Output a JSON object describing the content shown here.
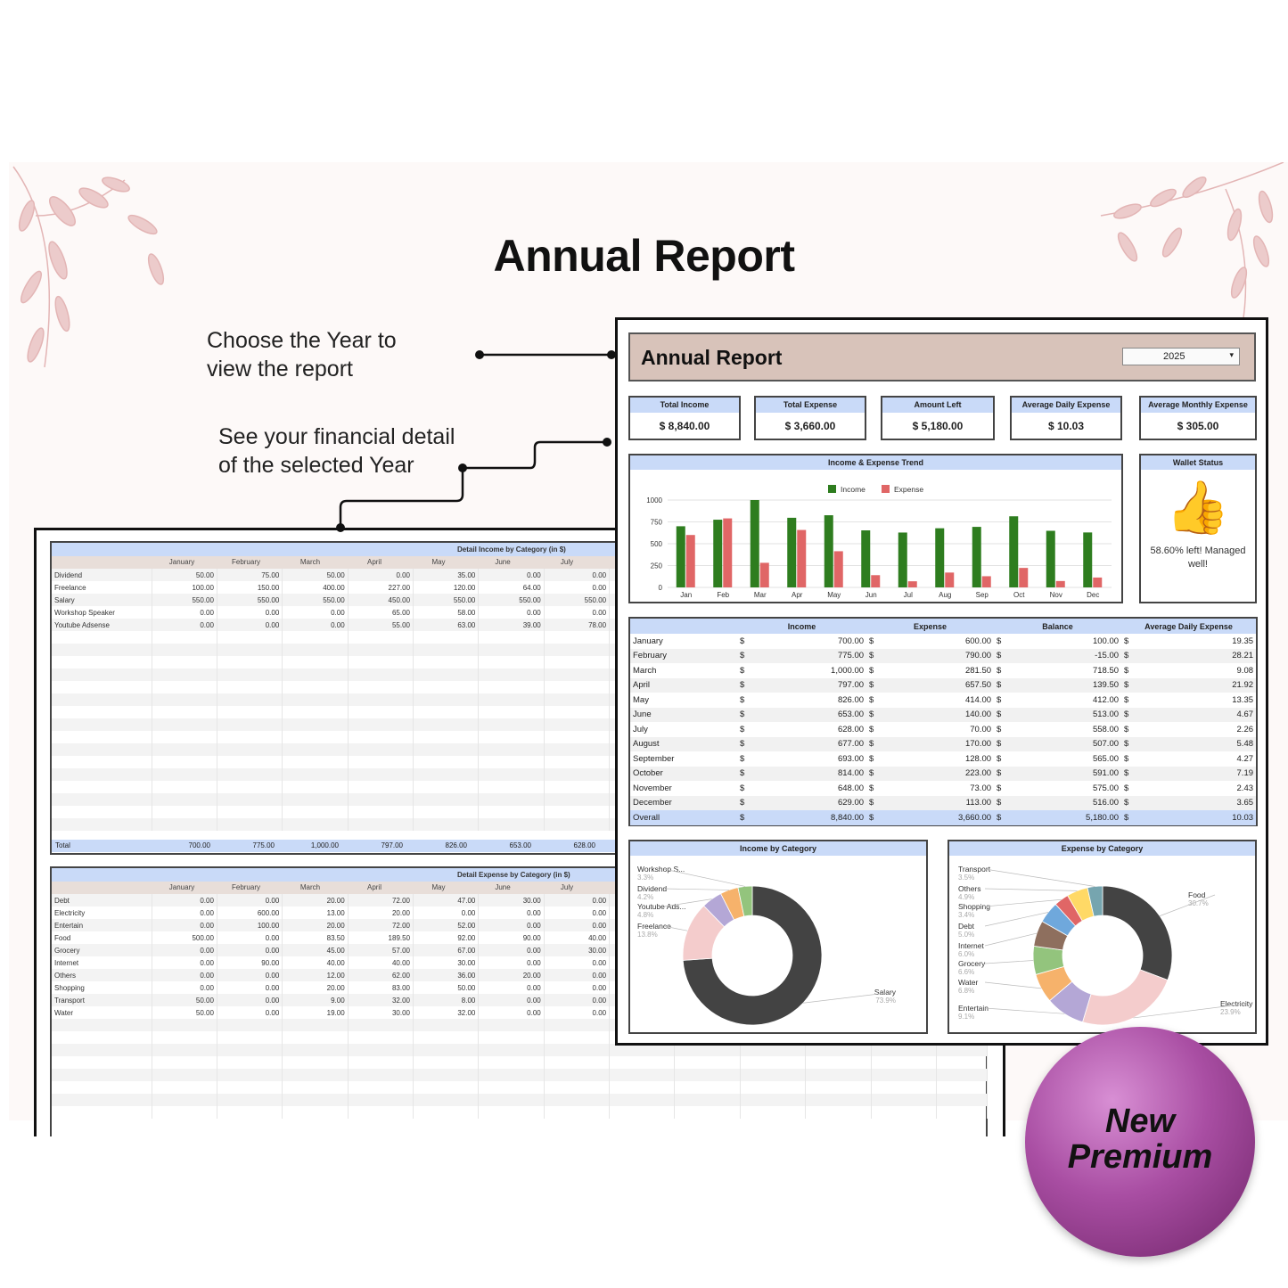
{
  "page": {
    "title": "Annual Report"
  },
  "callouts": {
    "year": [
      "Choose the Year to",
      "view the report"
    ],
    "detail": [
      "See your financial detail",
      "of the selected Year"
    ]
  },
  "badge": {
    "line1": "New",
    "line2": "Premium"
  },
  "dashboard": {
    "title": "Annual Report",
    "year": "2025",
    "kpis": [
      {
        "label": "Total Income",
        "value": "$ 8,840.00"
      },
      {
        "label": "Total Expense",
        "value": "$ 3,660.00"
      },
      {
        "label": "Amount Left",
        "value": "$ 5,180.00"
      },
      {
        "label": "Average Daily Expense",
        "value": "$ 10.03"
      },
      {
        "label": "Average Monthly Expense",
        "value": "$ 305.00"
      }
    ],
    "trend_title": "Income & Expense Trend",
    "wallet": {
      "title": "Wallet Status",
      "text_line1": "58.60% left! Managed",
      "text_line2": "well!"
    },
    "summary": {
      "headers": [
        "",
        "Income",
        "Expense",
        "Balance",
        "Average Daily Expense"
      ],
      "rows": [
        [
          "January",
          "700.00",
          "600.00",
          "100.00",
          "19.35"
        ],
        [
          "February",
          "775.00",
          "790.00",
          "-15.00",
          "28.21"
        ],
        [
          "March",
          "1,000.00",
          "281.50",
          "718.50",
          "9.08"
        ],
        [
          "April",
          "797.00",
          "657.50",
          "139.50",
          "21.92"
        ],
        [
          "May",
          "826.00",
          "414.00",
          "412.00",
          "13.35"
        ],
        [
          "June",
          "653.00",
          "140.00",
          "513.00",
          "4.67"
        ],
        [
          "July",
          "628.00",
          "70.00",
          "558.00",
          "2.26"
        ],
        [
          "August",
          "677.00",
          "170.00",
          "507.00",
          "5.48"
        ],
        [
          "September",
          "693.00",
          "128.00",
          "565.00",
          "4.27"
        ],
        [
          "October",
          "814.00",
          "223.00",
          "591.00",
          "7.19"
        ],
        [
          "November",
          "648.00",
          "73.00",
          "575.00",
          "2.43"
        ],
        [
          "December",
          "629.00",
          "113.00",
          "516.00",
          "3.65"
        ],
        [
          "Overall",
          "8,840.00",
          "3,660.00",
          "5,180.00",
          "10.03"
        ]
      ],
      "currency": "$"
    }
  },
  "sheet": {
    "income_title": "Detail Income by Category (in $)",
    "expense_title": "Detail Expense by Category (in $)",
    "months": [
      "",
      "January",
      "February",
      "March",
      "April",
      "May",
      "June",
      "July"
    ],
    "income_rows": [
      [
        "Dividend",
        "50.00",
        "75.00",
        "50.00",
        "0.00",
        "35.00",
        "0.00",
        "0.00"
      ],
      [
        "Freelance",
        "100.00",
        "150.00",
        "400.00",
        "227.00",
        "120.00",
        "64.00",
        "0.00"
      ],
      [
        "Salary",
        "550.00",
        "550.00",
        "550.00",
        "450.00",
        "550.00",
        "550.00",
        "550.00"
      ],
      [
        "Workshop Speaker",
        "0.00",
        "0.00",
        "0.00",
        "65.00",
        "58.00",
        "0.00",
        "0.00"
      ],
      [
        "Youtube Adsense",
        "0.00",
        "0.00",
        "0.00",
        "55.00",
        "63.00",
        "39.00",
        "78.00"
      ]
    ],
    "income_total": [
      "Total",
      "700.00",
      "775.00",
      "1,000.00",
      "797.00",
      "826.00",
      "653.00",
      "628.00"
    ],
    "expense_rows": [
      [
        "Debt",
        "0.00",
        "0.00",
        "20.00",
        "72.00",
        "47.00",
        "30.00",
        "0.00"
      ],
      [
        "Electricity",
        "0.00",
        "600.00",
        "13.00",
        "20.00",
        "0.00",
        "0.00",
        "0.00"
      ],
      [
        "Entertain",
        "0.00",
        "100.00",
        "20.00",
        "72.00",
        "52.00",
        "0.00",
        "0.00"
      ],
      [
        "Food",
        "500.00",
        "0.00",
        "83.50",
        "189.50",
        "92.00",
        "90.00",
        "40.00"
      ],
      [
        "Grocery",
        "0.00",
        "0.00",
        "45.00",
        "57.00",
        "67.00",
        "0.00",
        "30.00"
      ],
      [
        "Internet",
        "0.00",
        "90.00",
        "40.00",
        "40.00",
        "30.00",
        "0.00",
        "0.00"
      ],
      [
        "Others",
        "0.00",
        "0.00",
        "12.00",
        "62.00",
        "36.00",
        "20.00",
        "0.00"
      ],
      [
        "Shopping",
        "0.00",
        "0.00",
        "20.00",
        "83.00",
        "50.00",
        "0.00",
        "0.00"
      ],
      [
        "Transport",
        "50.00",
        "0.00",
        "9.00",
        "32.00",
        "8.00",
        "0.00",
        "0.00"
      ],
      [
        "Water",
        "50.00",
        "0.00",
        "19.00",
        "30.00",
        "32.00",
        "0.00",
        "0.00"
      ]
    ]
  },
  "chart_data": [
    {
      "type": "bar",
      "title": "Income & Expense Trend",
      "categories": [
        "Jan",
        "Feb",
        "Mar",
        "Apr",
        "May",
        "Jun",
        "Jul",
        "Aug",
        "Sep",
        "Oct",
        "Nov",
        "Dec"
      ],
      "series": [
        {
          "name": "Income",
          "color": "#2e7d1f",
          "values": [
            700,
            775,
            1000,
            797,
            826,
            653,
            628,
            677,
            693,
            814,
            648,
            629
          ]
        },
        {
          "name": "Expense",
          "color": "#e06666",
          "values": [
            600,
            790,
            281.5,
            657.5,
            414,
            140,
            70,
            170,
            128,
            223,
            73,
            113
          ]
        }
      ],
      "yticks": [
        "0",
        "250",
        "500",
        "750",
        "1000"
      ],
      "ylim": [
        0,
        1000
      ],
      "legend": "top"
    },
    {
      "type": "pie",
      "title": "Income by Category",
      "slices": [
        {
          "label": "Salary",
          "pct": "73.9%",
          "value": 73.9,
          "color": "#434343"
        },
        {
          "label": "Freelance",
          "pct": "13.8%",
          "value": 13.8,
          "color": "#f4cccc"
        },
        {
          "label": "Youtube Ads...",
          "pct": "4.8%",
          "value": 4.8,
          "color": "#b4a7d6"
        },
        {
          "label": "Dividend",
          "pct": "4.2%",
          "value": 4.2,
          "color": "#f6b26b"
        },
        {
          "label": "Workshop S...",
          "pct": "3.3%",
          "value": 3.3,
          "color": "#93c47d"
        }
      ]
    },
    {
      "type": "pie",
      "title": "Expense by Category",
      "slices": [
        {
          "label": "Food",
          "pct": "30.7%",
          "value": 30.7,
          "color": "#434343"
        },
        {
          "label": "Electricity",
          "pct": "23.9%",
          "value": 23.9,
          "color": "#f4cccc"
        },
        {
          "label": "Entertain",
          "pct": "9.1%",
          "value": 9.1,
          "color": "#b4a7d6"
        },
        {
          "label": "Water",
          "pct": "6.8%",
          "value": 6.8,
          "color": "#f6b26b"
        },
        {
          "label": "Grocery",
          "pct": "6.6%",
          "value": 6.6,
          "color": "#93c47d"
        },
        {
          "label": "Internet",
          "pct": "6.0%",
          "value": 6.0,
          "color": "#8e6f5e"
        },
        {
          "label": "Debt",
          "pct": "5.0%",
          "value": 5.0,
          "color": "#6fa8dc"
        },
        {
          "label": "Shopping",
          "pct": "3.4%",
          "value": 3.4,
          "color": "#e06666"
        },
        {
          "label": "Others",
          "pct": "4.9%",
          "value": 4.9,
          "color": "#ffd966"
        },
        {
          "label": "Transport",
          "pct": "3.5%",
          "value": 3.5,
          "color": "#76a5af"
        }
      ]
    }
  ]
}
